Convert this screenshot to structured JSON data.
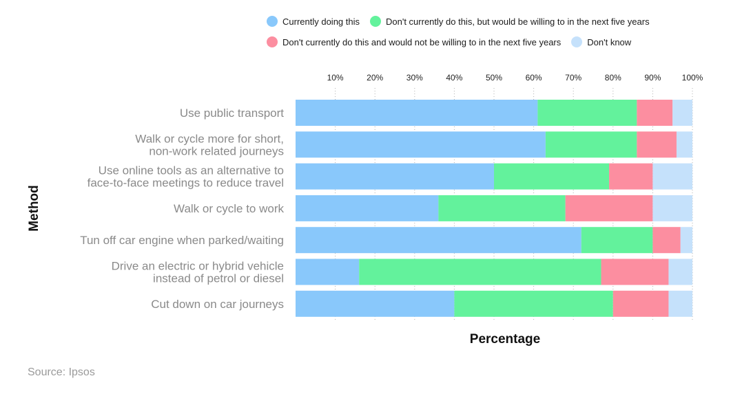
{
  "chart_data": {
    "type": "bar",
    "orientation": "horizontal",
    "stacked": true,
    "xlabel": "Percentage",
    "ylabel": "Method",
    "xlim": [
      0,
      100
    ],
    "x_ticks": [
      "10%",
      "20%",
      "30%",
      "40%",
      "50%",
      "60%",
      "70%",
      "80%",
      "90%",
      "100%"
    ],
    "grid": "vertical dotted",
    "legend_position": "top",
    "categories": [
      "Use public transport",
      "Walk or cycle more for short,\nnon-work related journeys",
      "Use online tools as an alternative to\nface-to-face meetings to reduce travel",
      "Walk or cycle to work",
      "Tun off car engine when parked/waiting",
      "Drive an electric or hybrid vehicle\ninstead of petrol or diesel",
      "Cut down on car journeys"
    ],
    "series": [
      {
        "name": "Currently doing this",
        "color": "#89c8fb",
        "values": [
          61,
          63,
          50,
          36,
          72,
          16,
          40
        ]
      },
      {
        "name": "Don't currently do this, but would be willing to in the next five years",
        "color": "#63f29c",
        "values": [
          25,
          23,
          29,
          32,
          18,
          61,
          40
        ]
      },
      {
        "name": "Don't currently do this and would not be willing to in the next five years",
        "color": "#fc8ea0",
        "values": [
          9,
          10,
          11,
          22,
          7,
          17,
          14
        ]
      },
      {
        "name": "Don't know",
        "color": "#c5e1fb",
        "values": [
          5,
          4,
          10,
          10,
          3,
          6,
          6
        ]
      }
    ]
  },
  "source": "Source: Ipsos"
}
